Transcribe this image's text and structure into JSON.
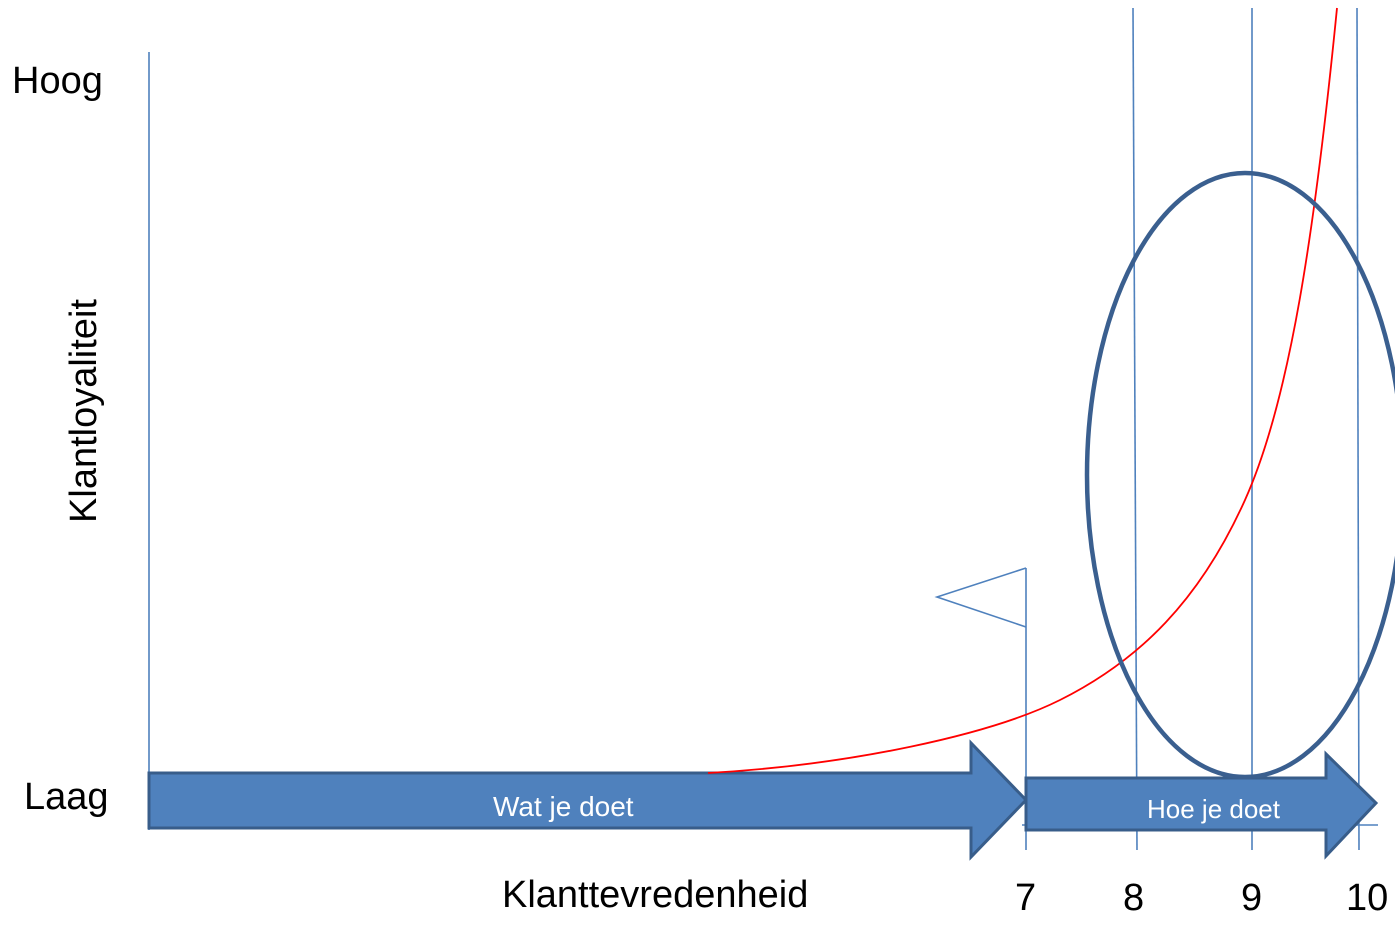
{
  "axis": {
    "y_high": "Hoog",
    "y_low": "Laag",
    "y_title": "Klantloyaliteit",
    "x_title": "Klanttevredenheid"
  },
  "ticks": [
    "7",
    "8",
    "9",
    "10"
  ],
  "arrows": {
    "what": "Wat je doet",
    "how": "Hoe je doet"
  },
  "colors": {
    "arrow_fill": "#4f81bd",
    "arrow_stroke": "#385d8a",
    "gridline": "#4f81bd",
    "curve": "#ff0000",
    "ellipse": "#3a5f8f"
  },
  "icons": [
    "flag-icon"
  ]
}
